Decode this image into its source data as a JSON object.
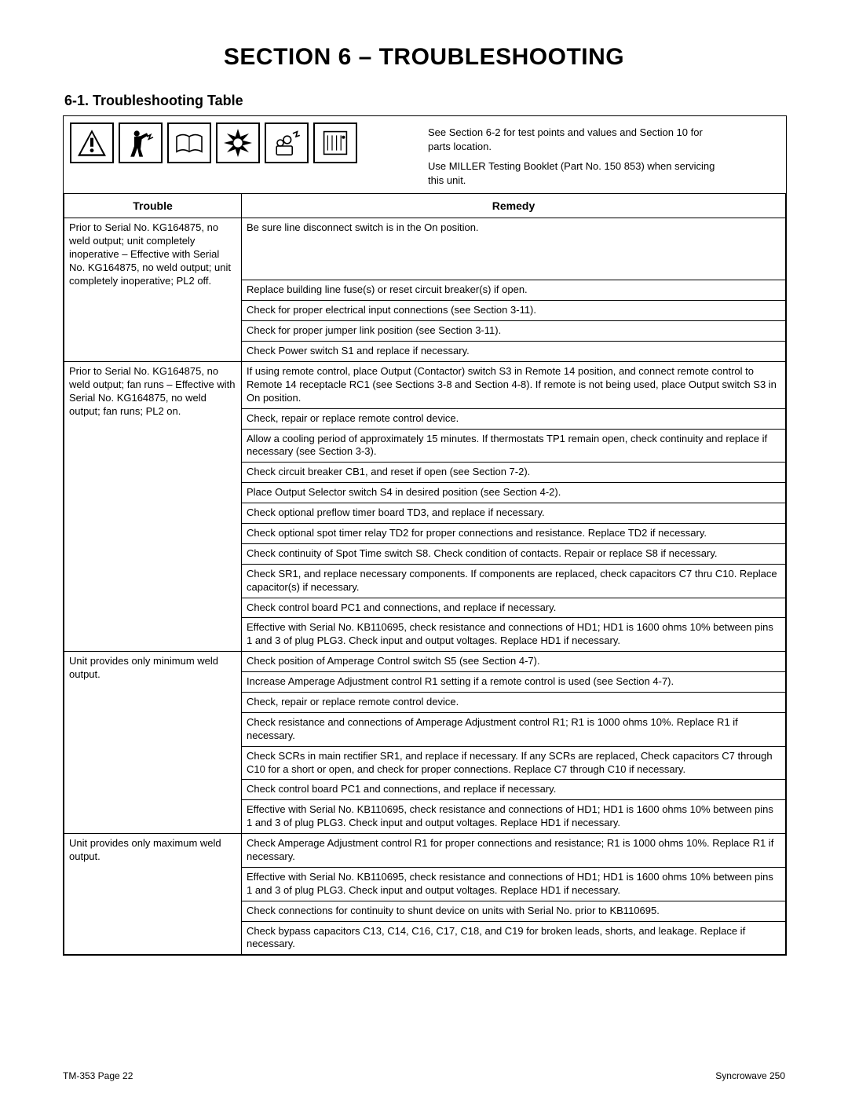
{
  "section_title": "SECTION 6 – TROUBLESHOOTING",
  "sub_heading": "6-1.   Troubleshooting Table",
  "intro_note_1": "See Section 6-2 for test points and values and Section 10 for parts location.",
  "intro_note_2": "Use MILLER Testing Booklet (Part No. 150 853) when servicing this unit.",
  "headers": {
    "trouble": "Trouble",
    "remedy": "Remedy"
  },
  "footer_left": "TM-353 Page 22",
  "footer_right": "Syncrowave 250",
  "groups": [
    {
      "trouble": "Prior to Serial No. KG164875, no weld output; unit completely inoperative – Effective with Serial No. KG164875, no weld output; unit completely inoperative; PL2 off.",
      "remedies": [
        "Be sure line disconnect switch is in the On position.",
        "Replace building line fuse(s) or reset circuit breaker(s) if open.",
        "Check for proper electrical input connections (see Section 3-11).",
        "Check for proper jumper link position (see Section 3-11).",
        "Check Power switch S1 and replace if necessary."
      ]
    },
    {
      "trouble": "Prior to Serial No. KG164875, no weld output; fan runs – Effective with Serial No. KG164875, no weld output; fan runs; PL2 on.",
      "remedies": [
        "If using remote control, place Output (Contactor) switch S3 in Remote 14 position, and connect remote control to Remote 14 receptacle RC1 (see Sections 3-8 and Section 4-8). If remote is not being used, place Output switch S3 in On position.",
        "Check, repair or replace remote control device.",
        "Allow a cooling period of approximately 15 minutes. If thermostats TP1 remain open, check continuity and replace if necessary (see Section 3-3).",
        "Check circuit breaker CB1, and reset if open (see Section 7-2).",
        "Place Output Selector switch S4 in desired position (see Section 4-2).",
        "Check optional preflow timer board TD3, and replace if necessary.",
        "Check optional spot timer relay TD2 for proper connections and resistance. Replace TD2 if necessary.",
        "Check continuity of Spot Time switch S8. Check condition of contacts. Repair or replace S8 if necessary.",
        "Check SR1, and replace necessary components. If components are replaced, check capacitors C7 thru C10. Replace capacitor(s) if necessary.",
        "Check control board PC1 and connections, and replace if necessary.",
        "Effective with Serial No. KB110695, check resistance and connections of HD1; HD1 is 1600 ohms   10% between pins 1 and 3 of plug PLG3. Check input and output voltages. Replace HD1 if necessary."
      ]
    },
    {
      "trouble": "Unit provides only minimum weld output.",
      "remedies": [
        "Check position of Amperage Control switch S5 (see Section 4-7).",
        "Increase Amperage Adjustment control R1 setting if a remote control is used (see Section 4-7).",
        "Check, repair or replace remote control device.",
        "Check resistance and connections of Amperage Adjustment control R1; R1 is 1000 ohms   10%. Replace R1 if necessary.",
        "Check SCRs in main rectifier SR1, and replace if necessary. If any SCRs are replaced, Check capacitors C7 through C10 for a short or open, and check for proper connections. Replace C7 through C10 if necessary.",
        "Check control board PC1 and connections, and replace if necessary.",
        "Effective with Serial No. KB110695, check resistance and connections of HD1; HD1 is 1600 ohms   10% between pins 1 and 3 of plug PLG3. Check input and output voltages. Replace HD1 if necessary."
      ]
    },
    {
      "trouble": "Unit provides only maximum weld output.",
      "remedies": [
        "Check Amperage Adjustment control R1 for proper connections and resistance; R1 is 1000 ohms   10%. Replace R1 if necessary.",
        "Effective with Serial No. KB110695, check resistance and connections of HD1; HD1 is 1600 ohms   10% between pins 1 and 3 of plug PLG3. Check input and output voltages. Replace HD1 if necessary.",
        "Check connections for continuity to shunt device on units with Serial No. prior to KB110695.",
        "Check bypass capacitors C13, C14, C16, C17, C18, and C19 for broken leads, shorts, and leakage. Replace if necessary."
      ]
    }
  ],
  "group0_first_remedy_min_height": 70
}
